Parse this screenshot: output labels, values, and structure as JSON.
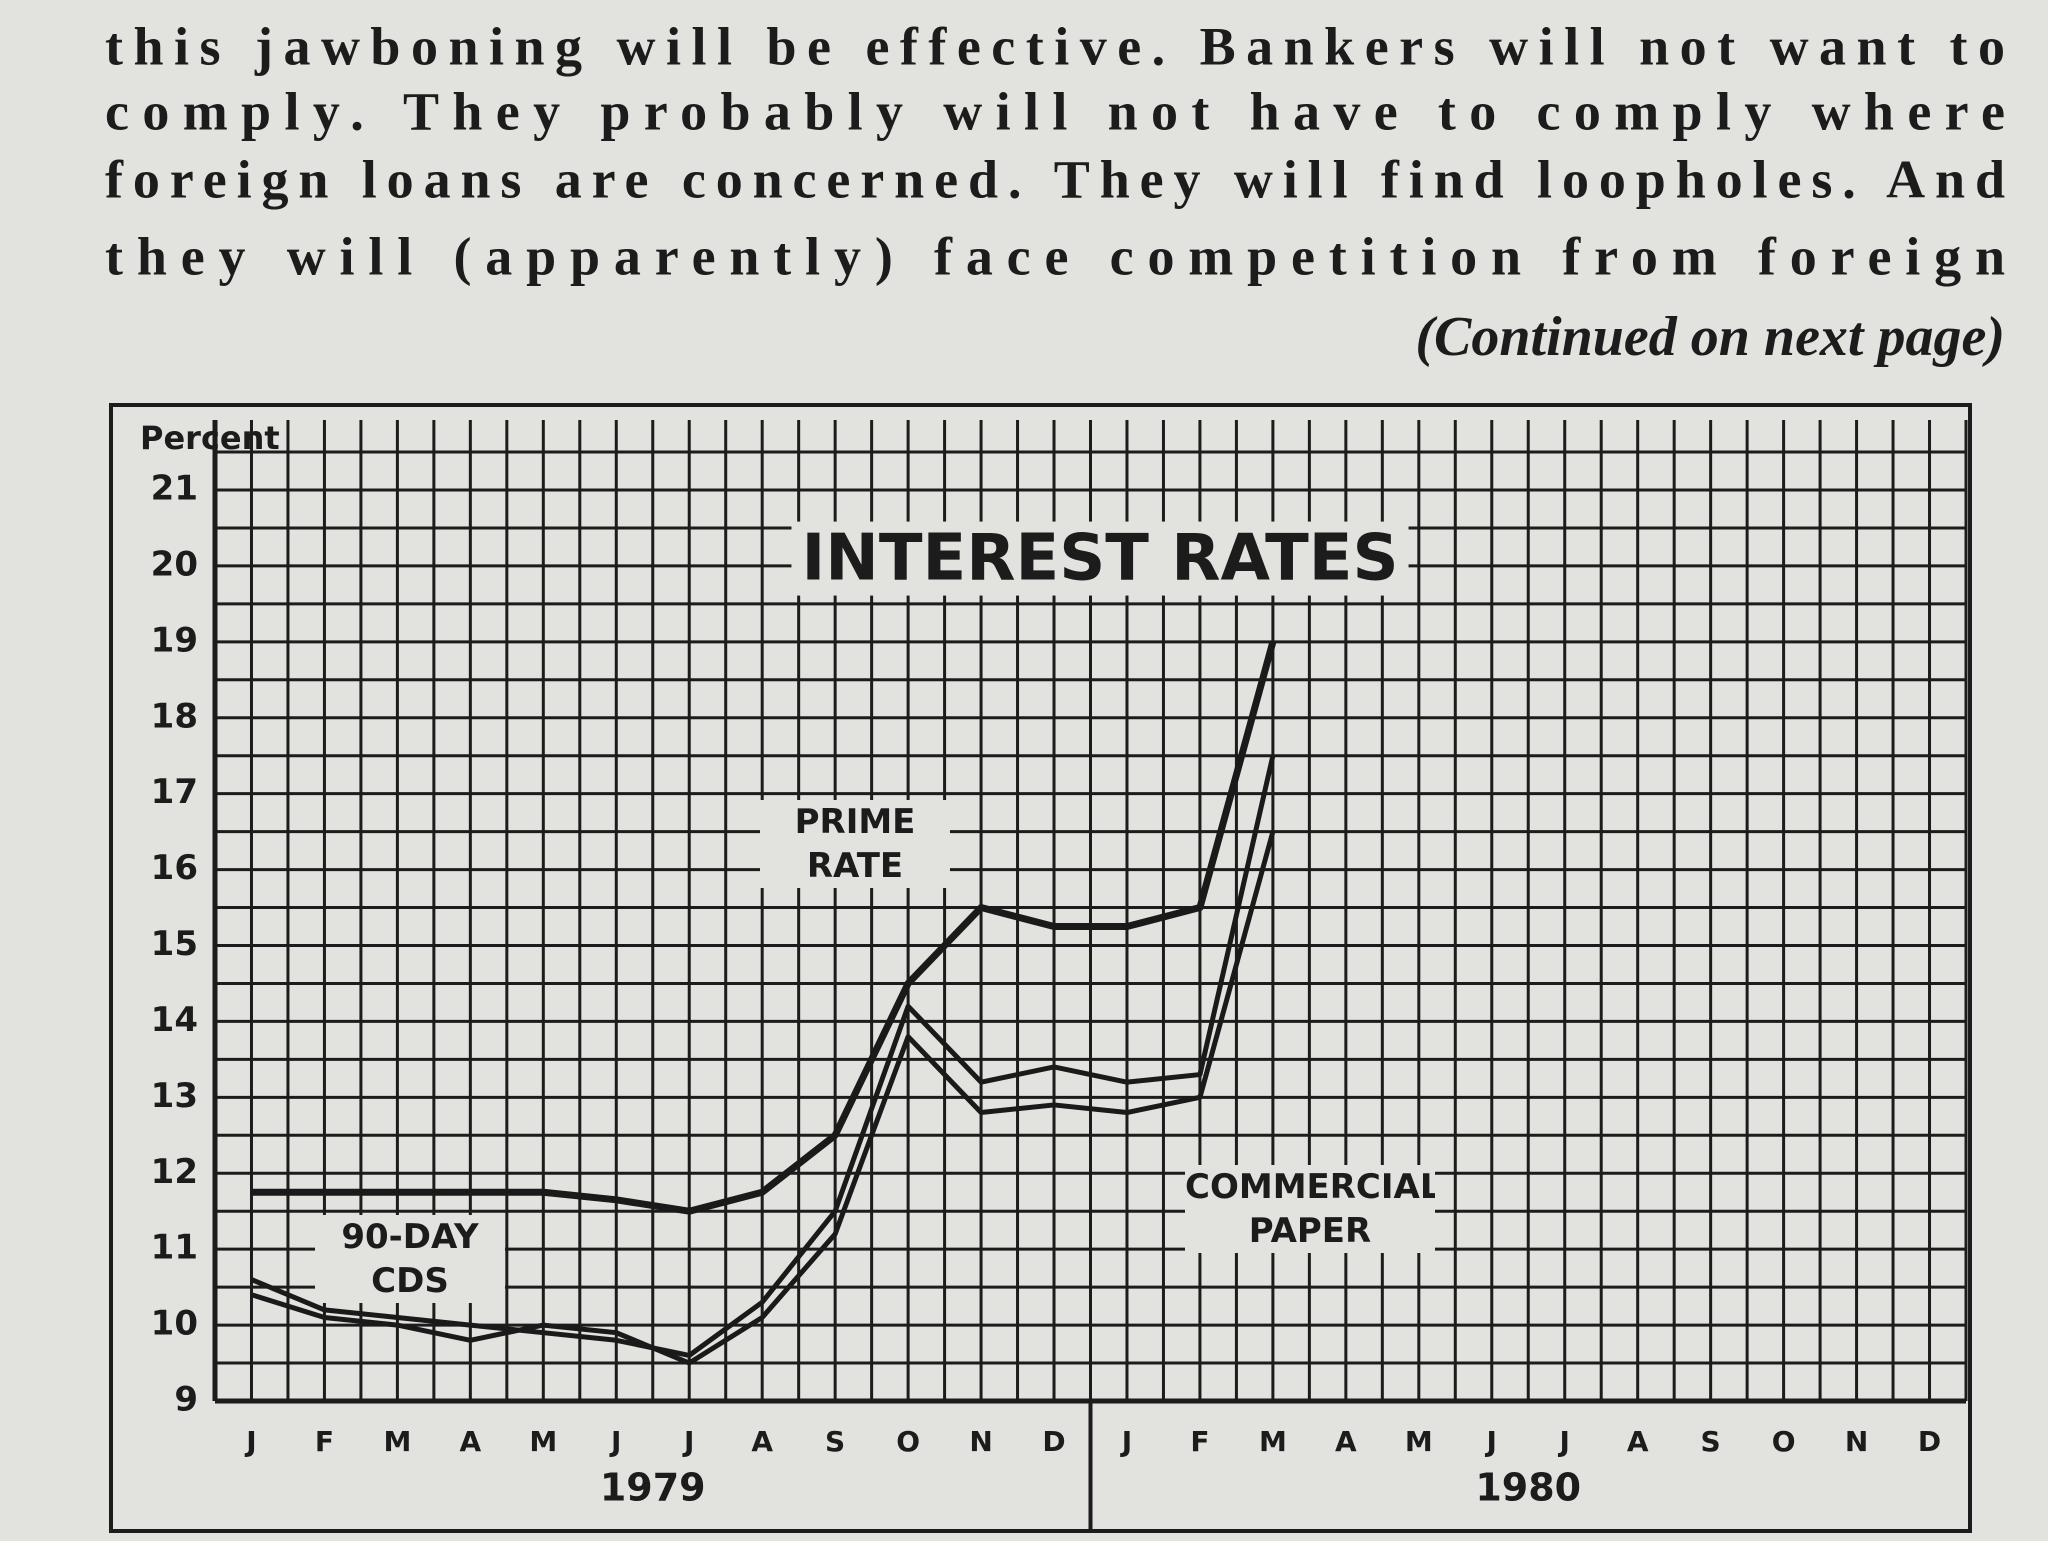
{
  "text": {
    "lines": [
      "this jawboning will be effective. Bankers will not want to",
      "comply. They probably will not have to comply where",
      "foreign loans are concerned. They will find loopholes. And",
      "they will (apparently) face competition from foreign"
    ],
    "continued": "(Continued on next page)"
  },
  "chart_data": {
    "type": "line",
    "title": "INTEREST RATES",
    "y_label": "Percent",
    "categories": [
      "J",
      "F",
      "M",
      "A",
      "M",
      "J",
      "J",
      "A",
      "S",
      "O",
      "N",
      "D",
      "J",
      "F",
      "M",
      "A",
      "M",
      "J",
      "J",
      "A",
      "S",
      "O",
      "N",
      "D"
    ],
    "year_labels": [
      "1979",
      "1980"
    ],
    "series": [
      {
        "name": "PRIME RATE",
        "color": "#1a1a1a",
        "values": [
          11.75,
          11.75,
          11.75,
          11.75,
          11.75,
          11.65,
          11.5,
          11.75,
          12.5,
          14.5,
          15.5,
          15.25,
          15.25,
          15.5,
          19,
          null,
          null,
          null,
          null,
          null,
          null,
          null,
          null,
          null
        ]
      },
      {
        "name": "90-DAY CDS",
        "color": "#1a1a1a",
        "values": [
          10.6,
          10.2,
          10.1,
          10.0,
          9.9,
          9.8,
          9.6,
          10.3,
          11.5,
          14.2,
          13.2,
          13.4,
          13.2,
          13.3,
          17.5,
          null,
          null,
          null,
          null,
          null,
          null,
          null,
          null,
          null
        ]
      },
      {
        "name": "COMMERCIAL PAPER",
        "color": "#1a1a1a",
        "values": [
          10.4,
          10.1,
          10.0,
          9.8,
          10.0,
          9.9,
          9.5,
          10.1,
          11.2,
          13.8,
          12.8,
          12.9,
          12.8,
          13.0,
          16.5,
          null,
          null,
          null,
          null,
          null,
          null,
          null,
          null,
          null
        ]
      }
    ],
    "ylim": [
      9,
      21
    ],
    "yticks": [
      9,
      10,
      11,
      12,
      13,
      14,
      15,
      16,
      17,
      18,
      19,
      20,
      21
    ],
    "grid": true
  }
}
